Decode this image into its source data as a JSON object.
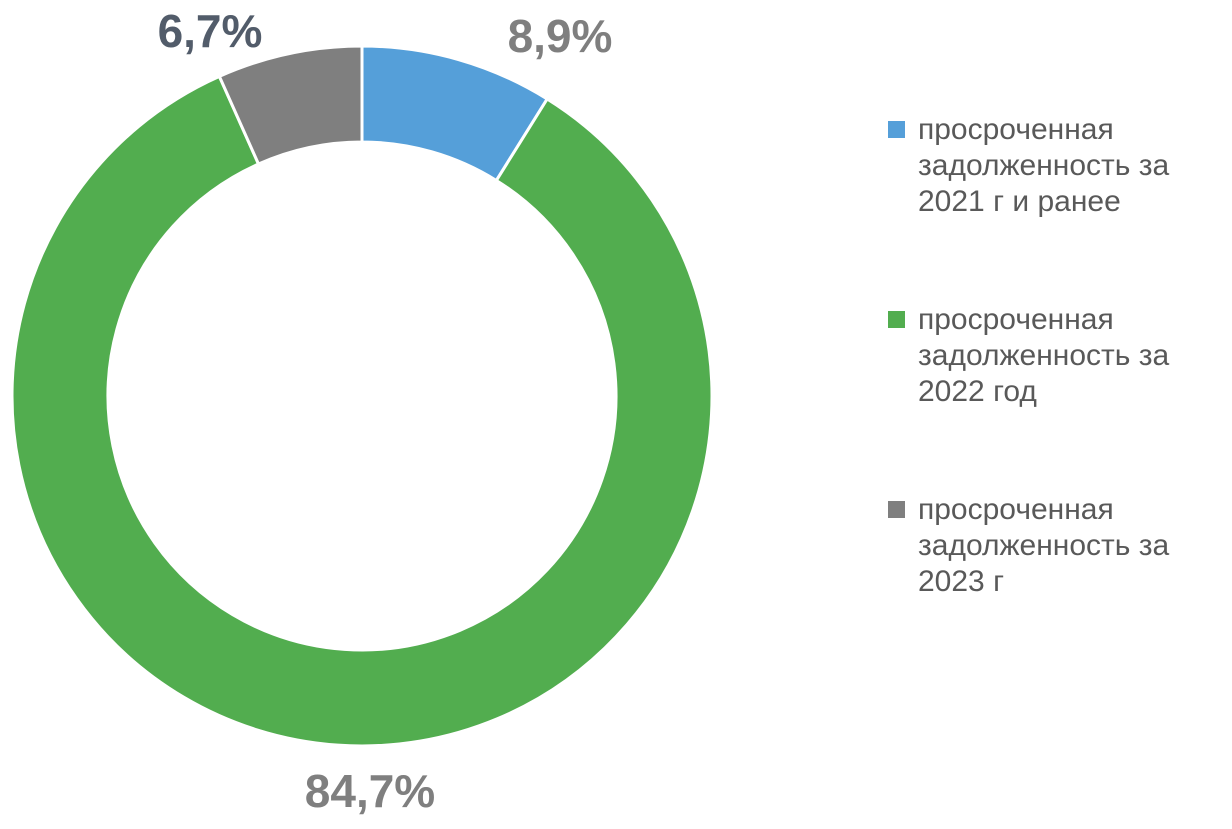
{
  "chart_data": {
    "type": "donut",
    "categories": [
      "просроченная задолженность за 2021 г и ранее",
      "просроченная задолженность за 2022 год",
      "просроченная задолженность за 2023 г"
    ],
    "values": [
      8.9,
      84.7,
      6.7
    ],
    "value_labels": [
      "8,9%",
      "84,7%",
      "6,7%"
    ],
    "colors": [
      "#559fd9",
      "#52ad4f",
      "#7f7f7f"
    ],
    "legend": "right"
  }
}
